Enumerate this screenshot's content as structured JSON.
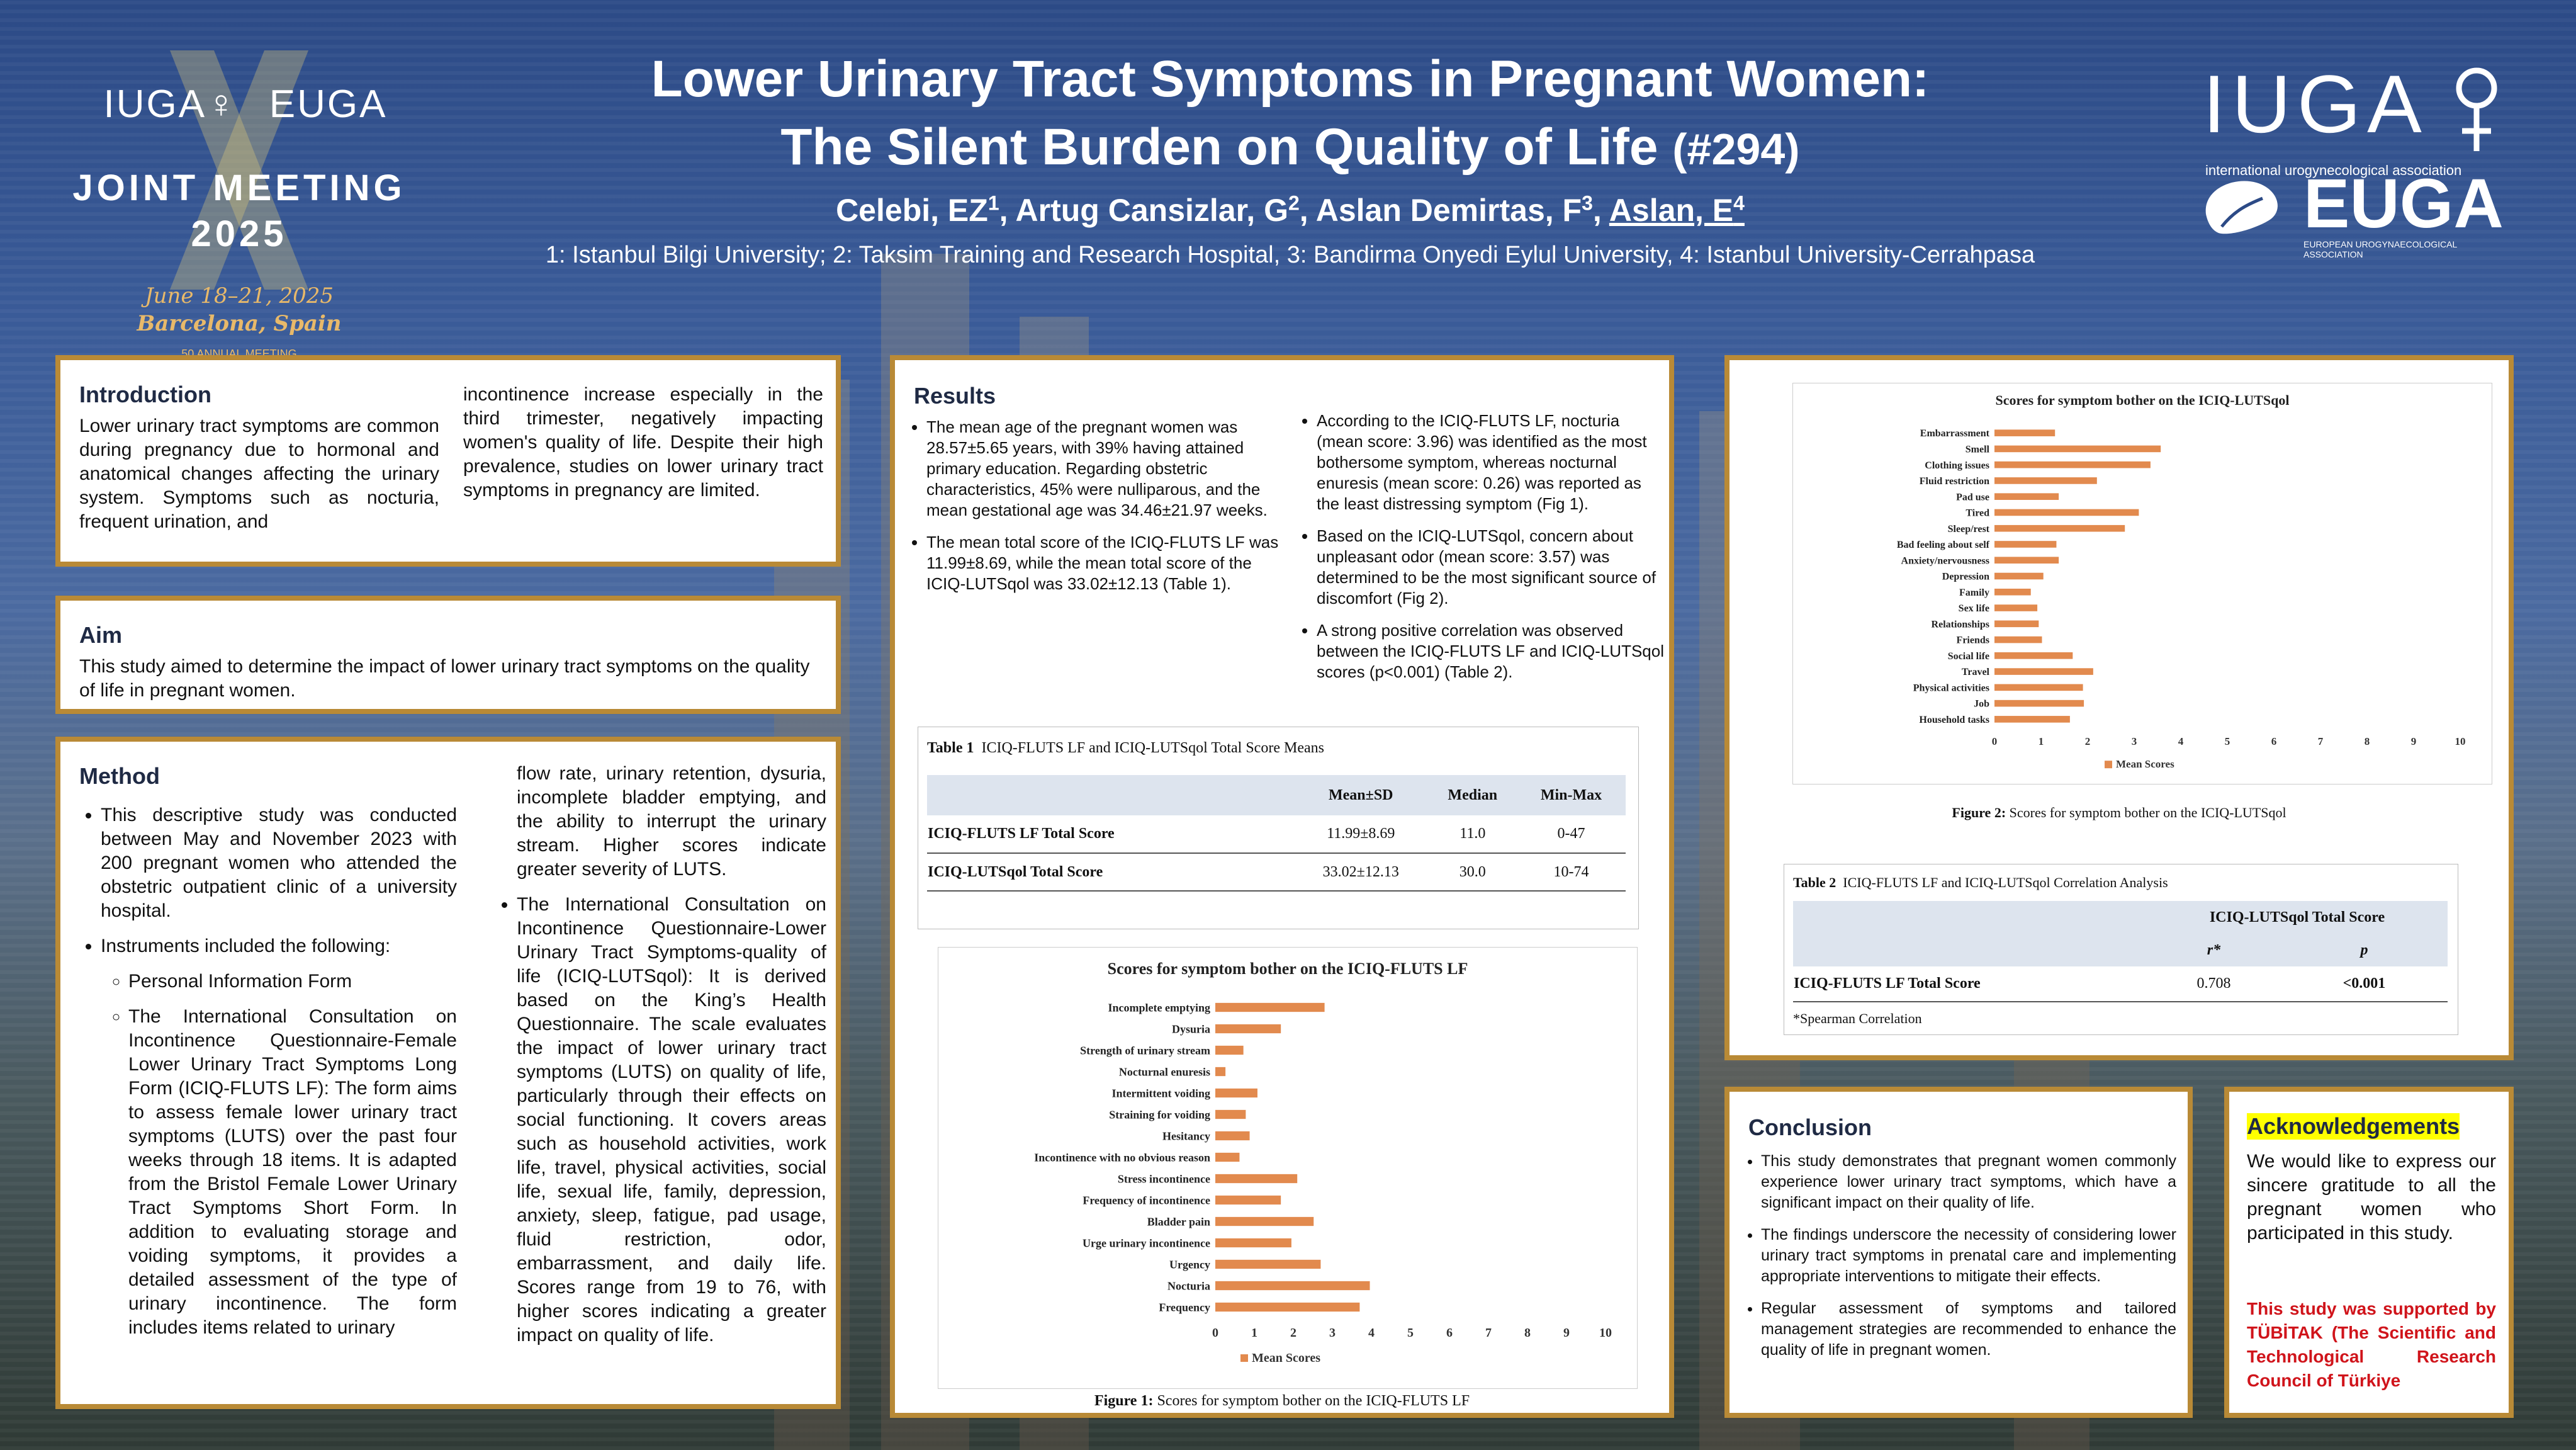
{
  "header": {
    "title_line1": "Lower Urinary Tract Symptoms in Pregnant Women:",
    "title_line2": "The Silent Burden on Quality of Life",
    "title_num": "(#294)",
    "authors": [
      {
        "name": "Celebi, EZ",
        "sup": "1",
        "sep": ", "
      },
      {
        "name": "Artug Cansizlar, G",
        "sup": "2",
        "sep": ", "
      },
      {
        "name": "Aslan Demirtas, F",
        "sup": "3",
        "sep": ", "
      },
      {
        "name": "Aslan, E",
        "sup": "4",
        "sep": ""
      }
    ],
    "affiliations": "1: Istanbul Bilgi University; 2: Taksim Training and Research Hospital, 3: Bandirma Onyedi Eylul University, 4: Istanbul University-Cerrahpasa"
  },
  "logo_left": {
    "iuga": "IUGA♀",
    "euga": "EUGA",
    "joint": "JOINT MEETING",
    "year": "2025",
    "dates": "June 18–21, 2025",
    "city": "Barcelona, Spain",
    "annual": "50 ANNUAL MEETING"
  },
  "logo_right": {
    "iuga": "IUGA",
    "iuga_sub": "international urogynecological association",
    "euga": "EUGA",
    "euga_sub": "EUROPEAN UROGYNAECOLOGICAL ASSOCIATION"
  },
  "introduction": {
    "title": "Introduction",
    "col1": "Lower urinary tract symptoms are common during pregnancy due to hormonal and anatomical changes affecting the urinary system. Symptoms such as nocturia, frequent urination, and",
    "col2": "incontinence increase especially in the third trimester, negatively impacting women's quality of life. Despite their high prevalence, studies on lower urinary tract symptoms in pregnancy are limited."
  },
  "aim": {
    "title": "Aim",
    "text": "This study aimed to determine the impact of lower urinary tract symptoms on the quality of life in pregnant women."
  },
  "method": {
    "title": "Method",
    "b1": "This descriptive study was conducted between May and November 2023 with 200 pregnant women who attended the obstetric outpatient clinic of a university hospital.",
    "b2": "Instruments included the following:",
    "s1": "Personal Information Form",
    "s2": "The International Consultation on Incontinence Questionnaire-Female Lower Urinary Tract Symptoms Long Form (ICIQ-FLUTS LF): The form aims to assess female lower urinary tract symptoms (LUTS) over the past four weeks through 18 items. It is adapted from the Bristol Female Lower Urinary Tract Symptoms Short Form. In addition to evaluating storage and voiding symptoms, it provides a detailed assessment of the type of urinary incontinence. The form includes items related to urinary",
    "c2_cont": "flow rate, urinary retention, dysuria, incomplete bladder emptying, and the ability to interrupt the urinary stream. Higher scores indicate greater severity of LUTS.",
    "s3": "The International Consultation on Incontinence Questionnaire-Lower Urinary Tract Symptoms-quality of life (ICIQ-LUTSqol): It is derived based on the King’s Health Questionnaire. The scale evaluates the impact of lower urinary tract symptoms (LUTS) on quality of life, particularly through their effects on social functioning. It covers areas such as household activities, work life, travel, physical activities, social life, sexual life, family, depression, anxiety, sleep, fatigue, pad usage, fluid restriction, odor, embarrassment, and daily life. Scores range from 19 to 76, with higher scores indicating a greater impact on quality of life."
  },
  "results": {
    "title": "Results",
    "l1": "The mean age of the pregnant women was 28.57±5.65 years, with 39% having attained primary education. Regarding obstetric characteristics, 45% were nulliparous, and the mean gestational age was 34.46±21.97 weeks.",
    "l2": "The mean total score of the ICIQ-FLUTS LF was 11.99±8.69, while the mean total score of the ICIQ-LUTSqol was 33.02±12.13 (Table 1).",
    "r1": "According to the ICIQ-FLUTS LF, nocturia (mean score: 3.96) was identified as the most bothersome symptom, whereas nocturnal enuresis (mean score: 0.26) was reported as the least distressing symptom (Fig 1).",
    "r2": "Based on the ICIQ-LUTSqol, concern about unpleasant odor (mean score: 3.57) was determined to be the most significant source of discomfort (Fig 2).",
    "r3": "A strong positive correlation was observed between the ICIQ-FLUTS LF and ICIQ-LUTSqol scores (p<0.001) (Table 2)."
  },
  "table1": {
    "label": "Table",
    "num": "1",
    "caption": "ICIQ-FLUTS LF and ICIQ-LUTSqol Total Score Means",
    "headers": [
      "",
      "Mean±SD",
      "Median",
      "Min-Max"
    ],
    "rows": [
      [
        "ICIQ-FLUTS LF Total Score",
        "11.99±8.69",
        "11.0",
        "0-47"
      ],
      [
        "ICIQ-LUTSqol Total Score",
        "33.02±12.13",
        "30.0",
        "10-74"
      ]
    ]
  },
  "table2": {
    "label": "Table",
    "num": "2",
    "caption": "ICIQ-FLUTS LF and ICIQ-LUTSqol Correlation Analysis",
    "group_header": "ICIQ-LUTSqol Total Score",
    "col_r": "r*",
    "col_p": "p",
    "row_label": "ICIQ-FLUTS LF Total Score",
    "r": "0.708",
    "p": "<0.001",
    "footnote": "*Spearman Correlation"
  },
  "fig1_caption": {
    "label": "Figure 1:",
    "text": "Scores for symptom bother on the ICIQ-FLUTS LF"
  },
  "fig2_caption": {
    "label": "Figure 2:",
    "text": "Scores for symptom bother on the ICIQ-LUTSqol"
  },
  "chart_data": [
    {
      "type": "bar",
      "orientation": "horizontal",
      "title": "Scores for symptom bother on the ICIQ-FLUTS LF",
      "categories": [
        "Incomplete emptying",
        "Dysuria",
        "Strength of urinary stream",
        "Nocturnal enuresis",
        "Intermittent voiding",
        "Straining for voiding",
        "Hesitancy",
        "Incontinence with no obvious reason",
        "Stress incontinence",
        "Frequency of incontinence",
        "Bladder pain",
        "Urge urinary incontinence",
        "Urgency",
        "Nocturia",
        "Frequency"
      ],
      "series": [
        {
          "name": "Mean Scores",
          "values": [
            2.8,
            1.68,
            0.72,
            0.26,
            1.08,
            0.78,
            0.88,
            0.62,
            2.1,
            1.68,
            2.52,
            1.95,
            2.7,
            3.96,
            3.7
          ]
        }
      ],
      "xlim": [
        0,
        10
      ],
      "xticks": [
        "0",
        "1",
        "2",
        "3",
        "4",
        "5",
        "6",
        "7",
        "8",
        "9",
        "10"
      ],
      "legend": "bottom",
      "color": "#e28a4e"
    },
    {
      "type": "bar",
      "orientation": "horizontal",
      "title": "Scores for symptom bother on the ICIQ-LUTSqol",
      "categories": [
        "Embarrassment",
        "Smell",
        "Clothing issues",
        "Fluid restriction",
        "Pad use",
        "Tired",
        "Sleep/rest",
        "Bad feeling about self",
        "Anxiety/nervousness",
        "Depression",
        "Family",
        "Sex life",
        "Relationships",
        "Friends",
        "Social life",
        "Travel",
        "Physical activities",
        "Job",
        "Household tasks"
      ],
      "series": [
        {
          "name": "Mean Scores",
          "values": [
            1.3,
            3.57,
            3.35,
            2.2,
            1.38,
            3.1,
            2.8,
            1.33,
            1.38,
            1.05,
            0.78,
            0.92,
            0.95,
            1.02,
            1.68,
            2.12,
            1.9,
            1.92,
            1.62
          ]
        }
      ],
      "xlim": [
        0,
        10
      ],
      "xticks": [
        "0",
        "1",
        "2",
        "3",
        "4",
        "5",
        "6",
        "7",
        "8",
        "9",
        "10"
      ],
      "legend": "bottom",
      "color": "#e28a4e"
    }
  ],
  "conclusion": {
    "title": "Conclusion",
    "b1": "This study demonstrates that pregnant women commonly experience lower urinary tract symptoms, which have a significant impact on their quality of life.",
    "b2": "The findings underscore the necessity of considering lower urinary tract symptoms in prenatal care and implementing appropriate interventions to mitigate their effects.",
    "b3": "Regular assessment of symptoms and tailored management strategies are recommended to enhance the quality of life in pregnant women."
  },
  "acknowledgements": {
    "title": "Acknowledgements",
    "text": "We would like to express our sincere gratitude to all the pregnant women who participated in this study.",
    "support": "This study was supported by TÜBİTAK (The Scientific and Technological Research Council of Türkiye"
  }
}
